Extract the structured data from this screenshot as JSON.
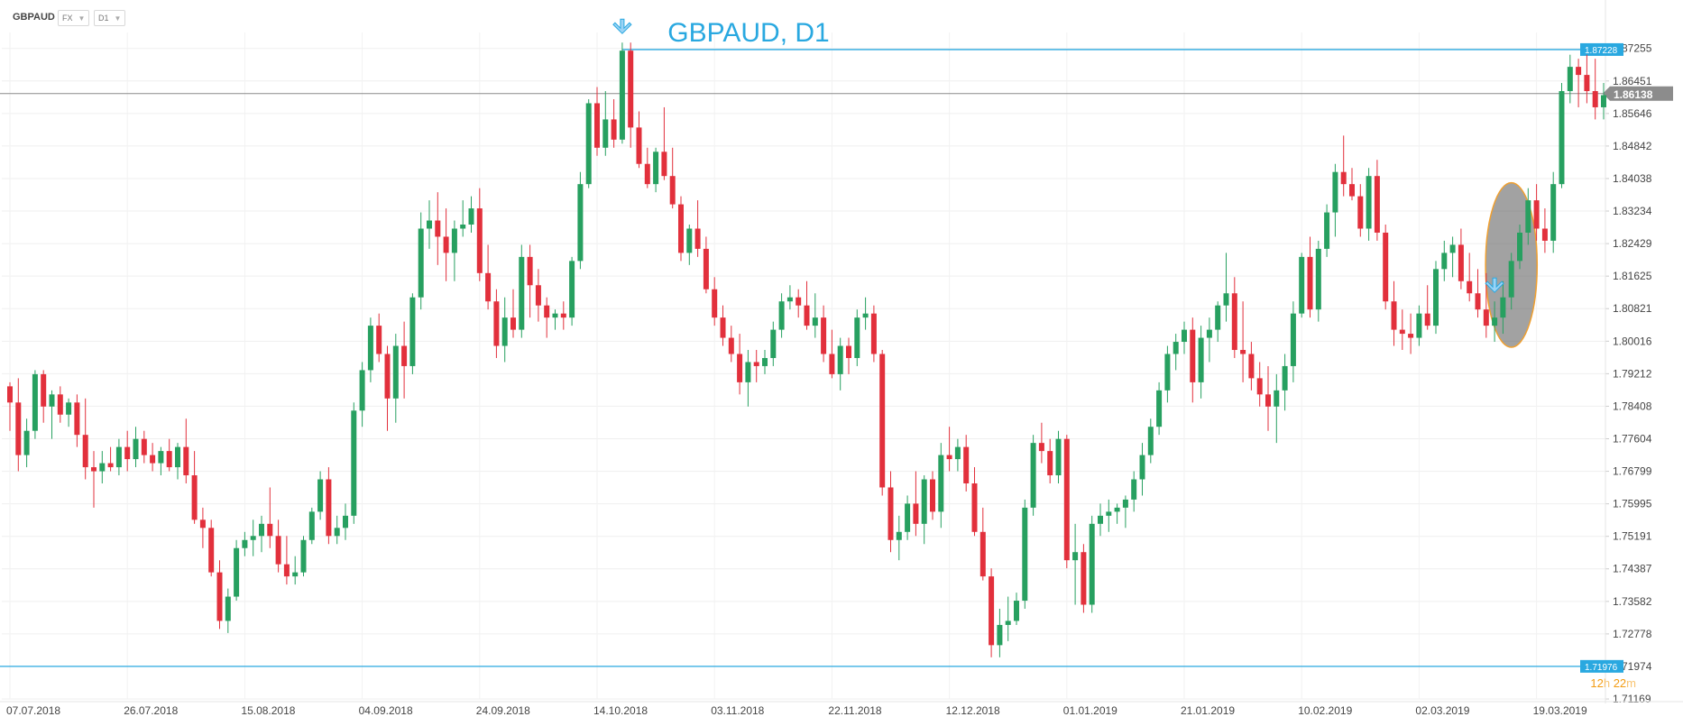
{
  "header": {
    "symbol": "GBPAUD",
    "market_select": "FX",
    "timeframe_select": "D1"
  },
  "colors": {
    "bull": "#27a060",
    "bear": "#e2303c",
    "hline": "#29a8e0",
    "price_line": "#8a8a8a",
    "annotation": "#f0a030",
    "title": "#29a8e0"
  },
  "timer": {
    "hours": "12",
    "h": "h",
    "minutes": "22",
    "m": "m"
  },
  "chart_data": {
    "type": "candlestick",
    "title": "GBPAUD, D1",
    "ylim": [
      1.7117,
      1.8765
    ],
    "y_ticks": [
      "1.87255",
      "1.86451",
      "1.85646",
      "1.84842",
      "1.84038",
      "1.83234",
      "1.82429",
      "1.81625",
      "1.80821",
      "1.80016",
      "1.79212",
      "1.78408",
      "1.77604",
      "1.76799",
      "1.75995",
      "1.75191",
      "1.74387",
      "1.73582",
      "1.72778",
      "1.71974",
      "1.71169"
    ],
    "x_ticks": [
      "07.07.2018",
      "26.07.2018",
      "15.08.2018",
      "04.09.2018",
      "24.09.2018",
      "14.10.2018",
      "03.11.2018",
      "22.11.2018",
      "12.12.2018",
      "01.01.2019",
      "21.01.2019",
      "10.02.2019",
      "02.03.2019",
      "19.03.2019"
    ],
    "x_tick_index": [
      0,
      14,
      28,
      42,
      56,
      70,
      84,
      98,
      112,
      126,
      140,
      154,
      168,
      182
    ],
    "candles": [
      [
        1.789,
        1.79,
        1.778,
        1.785
      ],
      [
        1.785,
        1.791,
        1.768,
        1.772
      ],
      [
        1.772,
        1.781,
        1.769,
        1.778
      ],
      [
        1.778,
        1.793,
        1.776,
        1.792
      ],
      [
        1.792,
        1.793,
        1.78,
        1.784
      ],
      [
        1.784,
        1.788,
        1.776,
        1.787
      ],
      [
        1.787,
        1.789,
        1.78,
        1.782
      ],
      [
        1.782,
        1.786,
        1.779,
        1.785
      ],
      [
        1.785,
        1.787,
        1.774,
        1.777
      ],
      [
        1.777,
        1.786,
        1.766,
        1.769
      ],
      [
        1.769,
        1.773,
        1.759,
        1.768
      ],
      [
        1.768,
        1.773,
        1.765,
        1.77
      ],
      [
        1.77,
        1.774,
        1.768,
        1.769
      ],
      [
        1.769,
        1.776,
        1.767,
        1.774
      ],
      [
        1.774,
        1.778,
        1.768,
        1.771
      ],
      [
        1.771,
        1.779,
        1.769,
        1.776
      ],
      [
        1.776,
        1.778,
        1.77,
        1.772
      ],
      [
        1.772,
        1.775,
        1.768,
        1.77
      ],
      [
        1.77,
        1.774,
        1.767,
        1.773
      ],
      [
        1.773,
        1.776,
        1.768,
        1.769
      ],
      [
        1.769,
        1.775,
        1.766,
        1.774
      ],
      [
        1.774,
        1.781,
        1.765,
        1.767
      ],
      [
        1.767,
        1.773,
        1.755,
        1.756
      ],
      [
        1.756,
        1.759,
        1.749,
        1.754
      ],
      [
        1.754,
        1.756,
        1.742,
        1.743
      ],
      [
        1.743,
        1.746,
        1.729,
        1.731
      ],
      [
        1.731,
        1.739,
        1.728,
        1.737
      ],
      [
        1.737,
        1.751,
        1.736,
        1.749
      ],
      [
        1.749,
        1.753,
        1.747,
        1.751
      ],
      [
        1.751,
        1.756,
        1.747,
        1.752
      ],
      [
        1.752,
        1.757,
        1.748,
        1.755
      ],
      [
        1.755,
        1.764,
        1.749,
        1.752
      ],
      [
        1.752,
        1.756,
        1.743,
        1.745
      ],
      [
        1.745,
        1.752,
        1.74,
        1.742
      ],
      [
        1.742,
        1.747,
        1.74,
        1.743
      ],
      [
        1.743,
        1.752,
        1.742,
        1.751
      ],
      [
        1.751,
        1.759,
        1.75,
        1.758
      ],
      [
        1.758,
        1.768,
        1.756,
        1.766
      ],
      [
        1.766,
        1.769,
        1.75,
        1.752
      ],
      [
        1.752,
        1.757,
        1.75,
        1.754
      ],
      [
        1.754,
        1.76,
        1.751,
        1.757
      ],
      [
        1.757,
        1.785,
        1.755,
        1.783
      ],
      [
        1.783,
        1.795,
        1.779,
        1.793
      ],
      [
        1.793,
        1.806,
        1.79,
        1.804
      ],
      [
        1.804,
        1.807,
        1.795,
        1.797
      ],
      [
        1.797,
        1.799,
        1.778,
        1.786
      ],
      [
        1.786,
        1.802,
        1.78,
        1.799
      ],
      [
        1.799,
        1.805,
        1.786,
        1.794
      ],
      [
        1.794,
        1.812,
        1.792,
        1.811
      ],
      [
        1.811,
        1.832,
        1.808,
        1.828
      ],
      [
        1.828,
        1.835,
        1.823,
        1.83
      ],
      [
        1.83,
        1.837,
        1.819,
        1.826
      ],
      [
        1.826,
        1.833,
        1.815,
        1.822
      ],
      [
        1.822,
        1.83,
        1.815,
        1.828
      ],
      [
        1.828,
        1.835,
        1.826,
        1.829
      ],
      [
        1.829,
        1.836,
        1.827,
        1.833
      ],
      [
        1.833,
        1.838,
        1.815,
        1.817
      ],
      [
        1.817,
        1.824,
        1.808,
        1.81
      ],
      [
        1.81,
        1.813,
        1.796,
        1.799
      ],
      [
        1.799,
        1.811,
        1.795,
        1.806
      ],
      [
        1.806,
        1.813,
        1.801,
        1.803
      ],
      [
        1.803,
        1.824,
        1.801,
        1.821
      ],
      [
        1.821,
        1.824,
        1.806,
        1.814
      ],
      [
        1.814,
        1.818,
        1.805,
        1.809
      ],
      [
        1.809,
        1.811,
        1.801,
        1.806
      ],
      [
        1.806,
        1.808,
        1.803,
        1.807
      ],
      [
        1.807,
        1.81,
        1.803,
        1.806
      ],
      [
        1.806,
        1.821,
        1.804,
        1.82
      ],
      [
        1.82,
        1.842,
        1.818,
        1.839
      ],
      [
        1.839,
        1.86,
        1.838,
        1.859
      ],
      [
        1.859,
        1.863,
        1.846,
        1.848
      ],
      [
        1.848,
        1.862,
        1.846,
        1.855
      ],
      [
        1.855,
        1.86,
        1.848,
        1.85
      ],
      [
        1.85,
        1.874,
        1.849,
        1.872
      ],
      [
        1.872,
        1.874,
        1.848,
        1.853
      ],
      [
        1.853,
        1.857,
        1.843,
        1.844
      ],
      [
        1.844,
        1.848,
        1.838,
        1.839
      ],
      [
        1.839,
        1.848,
        1.837,
        1.847
      ],
      [
        1.847,
        1.858,
        1.84,
        1.841
      ],
      [
        1.841,
        1.848,
        1.833,
        1.834
      ],
      [
        1.834,
        1.836,
        1.82,
        1.822
      ],
      [
        1.822,
        1.829,
        1.819,
        1.828
      ],
      [
        1.828,
        1.835,
        1.821,
        1.823
      ],
      [
        1.823,
        1.826,
        1.812,
        1.813
      ],
      [
        1.813,
        1.816,
        1.804,
        1.806
      ],
      [
        1.806,
        1.809,
        1.799,
        1.801
      ],
      [
        1.801,
        1.804,
        1.795,
        1.797
      ],
      [
        1.797,
        1.802,
        1.787,
        1.79
      ],
      [
        1.79,
        1.798,
        1.784,
        1.795
      ],
      [
        1.795,
        1.798,
        1.79,
        1.794
      ],
      [
        1.794,
        1.798,
        1.792,
        1.796
      ],
      [
        1.796,
        1.805,
        1.794,
        1.803
      ],
      [
        1.803,
        1.812,
        1.801,
        1.81
      ],
      [
        1.81,
        1.814,
        1.808,
        1.811
      ],
      [
        1.811,
        1.813,
        1.806,
        1.809
      ],
      [
        1.809,
        1.815,
        1.803,
        1.804
      ],
      [
        1.804,
        1.812,
        1.801,
        1.806
      ],
      [
        1.806,
        1.809,
        1.795,
        1.797
      ],
      [
        1.797,
        1.803,
        1.791,
        1.792
      ],
      [
        1.792,
        1.801,
        1.788,
        1.799
      ],
      [
        1.799,
        1.801,
        1.792,
        1.796
      ],
      [
        1.796,
        1.808,
        1.794,
        1.806
      ],
      [
        1.806,
        1.811,
        1.803,
        1.807
      ],
      [
        1.807,
        1.809,
        1.795,
        1.797
      ],
      [
        1.797,
        1.798,
        1.762,
        1.764
      ],
      [
        1.764,
        1.768,
        1.748,
        1.751
      ],
      [
        1.751,
        1.757,
        1.746,
        1.753
      ],
      [
        1.753,
        1.762,
        1.751,
        1.76
      ],
      [
        1.76,
        1.768,
        1.752,
        1.755
      ],
      [
        1.755,
        1.767,
        1.75,
        1.766
      ],
      [
        1.766,
        1.768,
        1.756,
        1.758
      ],
      [
        1.758,
        1.775,
        1.754,
        1.772
      ],
      [
        1.772,
        1.779,
        1.768,
        1.771
      ],
      [
        1.771,
        1.776,
        1.768,
        1.774
      ],
      [
        1.774,
        1.777,
        1.763,
        1.765
      ],
      [
        1.765,
        1.769,
        1.752,
        1.753
      ],
      [
        1.753,
        1.759,
        1.741,
        1.742
      ],
      [
        1.742,
        1.744,
        1.722,
        1.725
      ],
      [
        1.725,
        1.734,
        1.722,
        1.73
      ],
      [
        1.73,
        1.737,
        1.726,
        1.731
      ],
      [
        1.731,
        1.738,
        1.73,
        1.736
      ],
      [
        1.736,
        1.761,
        1.734,
        1.759
      ],
      [
        1.759,
        1.777,
        1.757,
        1.775
      ],
      [
        1.775,
        1.78,
        1.77,
        1.773
      ],
      [
        1.773,
        1.776,
        1.765,
        1.767
      ],
      [
        1.767,
        1.778,
        1.765,
        1.776
      ],
      [
        1.776,
        1.777,
        1.744,
        1.746
      ],
      [
        1.746,
        1.755,
        1.735,
        1.748
      ],
      [
        1.748,
        1.75,
        1.733,
        1.735
      ],
      [
        1.735,
        1.757,
        1.733,
        1.755
      ],
      [
        1.755,
        1.76,
        1.752,
        1.757
      ],
      [
        1.757,
        1.761,
        1.753,
        1.758
      ],
      [
        1.758,
        1.76,
        1.755,
        1.759
      ],
      [
        1.759,
        1.762,
        1.754,
        1.761
      ],
      [
        1.761,
        1.768,
        1.758,
        1.766
      ],
      [
        1.766,
        1.775,
        1.762,
        1.772
      ],
      [
        1.772,
        1.781,
        1.77,
        1.779
      ],
      [
        1.779,
        1.79,
        1.777,
        1.788
      ],
      [
        1.788,
        1.799,
        1.785,
        1.797
      ],
      [
        1.797,
        1.802,
        1.793,
        1.8
      ],
      [
        1.8,
        1.805,
        1.797,
        1.803
      ],
      [
        1.803,
        1.806,
        1.785,
        1.79
      ],
      [
        1.79,
        1.804,
        1.786,
        1.801
      ],
      [
        1.801,
        1.806,
        1.795,
        1.803
      ],
      [
        1.803,
        1.81,
        1.8,
        1.809
      ],
      [
        1.809,
        1.822,
        1.805,
        1.812
      ],
      [
        1.812,
        1.816,
        1.796,
        1.798
      ],
      [
        1.798,
        1.81,
        1.79,
        1.797
      ],
      [
        1.797,
        1.8,
        1.788,
        1.791
      ],
      [
        1.791,
        1.795,
        1.784,
        1.787
      ],
      [
        1.787,
        1.794,
        1.778,
        1.784
      ],
      [
        1.784,
        1.792,
        1.775,
        1.788
      ],
      [
        1.788,
        1.797,
        1.783,
        1.794
      ],
      [
        1.794,
        1.81,
        1.79,
        1.807
      ],
      [
        1.807,
        1.822,
        1.806,
        1.821
      ],
      [
        1.821,
        1.826,
        1.806,
        1.808
      ],
      [
        1.808,
        1.825,
        1.805,
        1.823
      ],
      [
        1.823,
        1.834,
        1.821,
        1.832
      ],
      [
        1.832,
        1.844,
        1.826,
        1.842
      ],
      [
        1.842,
        1.851,
        1.836,
        1.839
      ],
      [
        1.839,
        1.843,
        1.835,
        1.836
      ],
      [
        1.836,
        1.839,
        1.826,
        1.828
      ],
      [
        1.828,
        1.843,
        1.825,
        1.841
      ],
      [
        1.841,
        1.845,
        1.825,
        1.827
      ],
      [
        1.827,
        1.829,
        1.808,
        1.81
      ],
      [
        1.81,
        1.815,
        1.799,
        1.803
      ],
      [
        1.803,
        1.808,
        1.798,
        1.802
      ],
      [
        1.802,
        1.807,
        1.797,
        1.801
      ],
      [
        1.801,
        1.809,
        1.799,
        1.807
      ],
      [
        1.807,
        1.814,
        1.803,
        1.804
      ],
      [
        1.804,
        1.82,
        1.802,
        1.818
      ],
      [
        1.818,
        1.825,
        1.815,
        1.822
      ],
      [
        1.822,
        1.826,
        1.816,
        1.824
      ],
      [
        1.824,
        1.828,
        1.813,
        1.815
      ],
      [
        1.815,
        1.822,
        1.81,
        1.812
      ],
      [
        1.812,
        1.818,
        1.806,
        1.808
      ],
      [
        1.808,
        1.817,
        1.801,
        1.804
      ],
      [
        1.804,
        1.81,
        1.8,
        1.806
      ],
      [
        1.806,
        1.815,
        1.802,
        1.811
      ],
      [
        1.811,
        1.822,
        1.808,
        1.82
      ],
      [
        1.82,
        1.829,
        1.818,
        1.827
      ],
      [
        1.827,
        1.838,
        1.824,
        1.835
      ],
      [
        1.835,
        1.839,
        1.825,
        1.828
      ],
      [
        1.828,
        1.833,
        1.822,
        1.825
      ],
      [
        1.825,
        1.842,
        1.822,
        1.839
      ],
      [
        1.839,
        1.864,
        1.838,
        1.862
      ],
      [
        1.862,
        1.871,
        1.859,
        1.868
      ],
      [
        1.868,
        1.87,
        1.858,
        1.866
      ],
      [
        1.866,
        1.871,
        1.859,
        1.862
      ],
      [
        1.862,
        1.87,
        1.855,
        1.858
      ],
      [
        1.858,
        1.864,
        1.855,
        1.861
      ]
    ],
    "hlines": [
      {
        "label": "1.87228",
        "value": 1.87228,
        "kind": "resistance"
      },
      {
        "label": "1.71976",
        "value": 1.71976,
        "kind": "support"
      }
    ],
    "current_price": {
      "label": "1.86138",
      "value": 1.86138
    },
    "arrow_markers_index": [
      73,
      177
    ],
    "highlight": {
      "start_index": 177,
      "end_index": 181
    }
  }
}
